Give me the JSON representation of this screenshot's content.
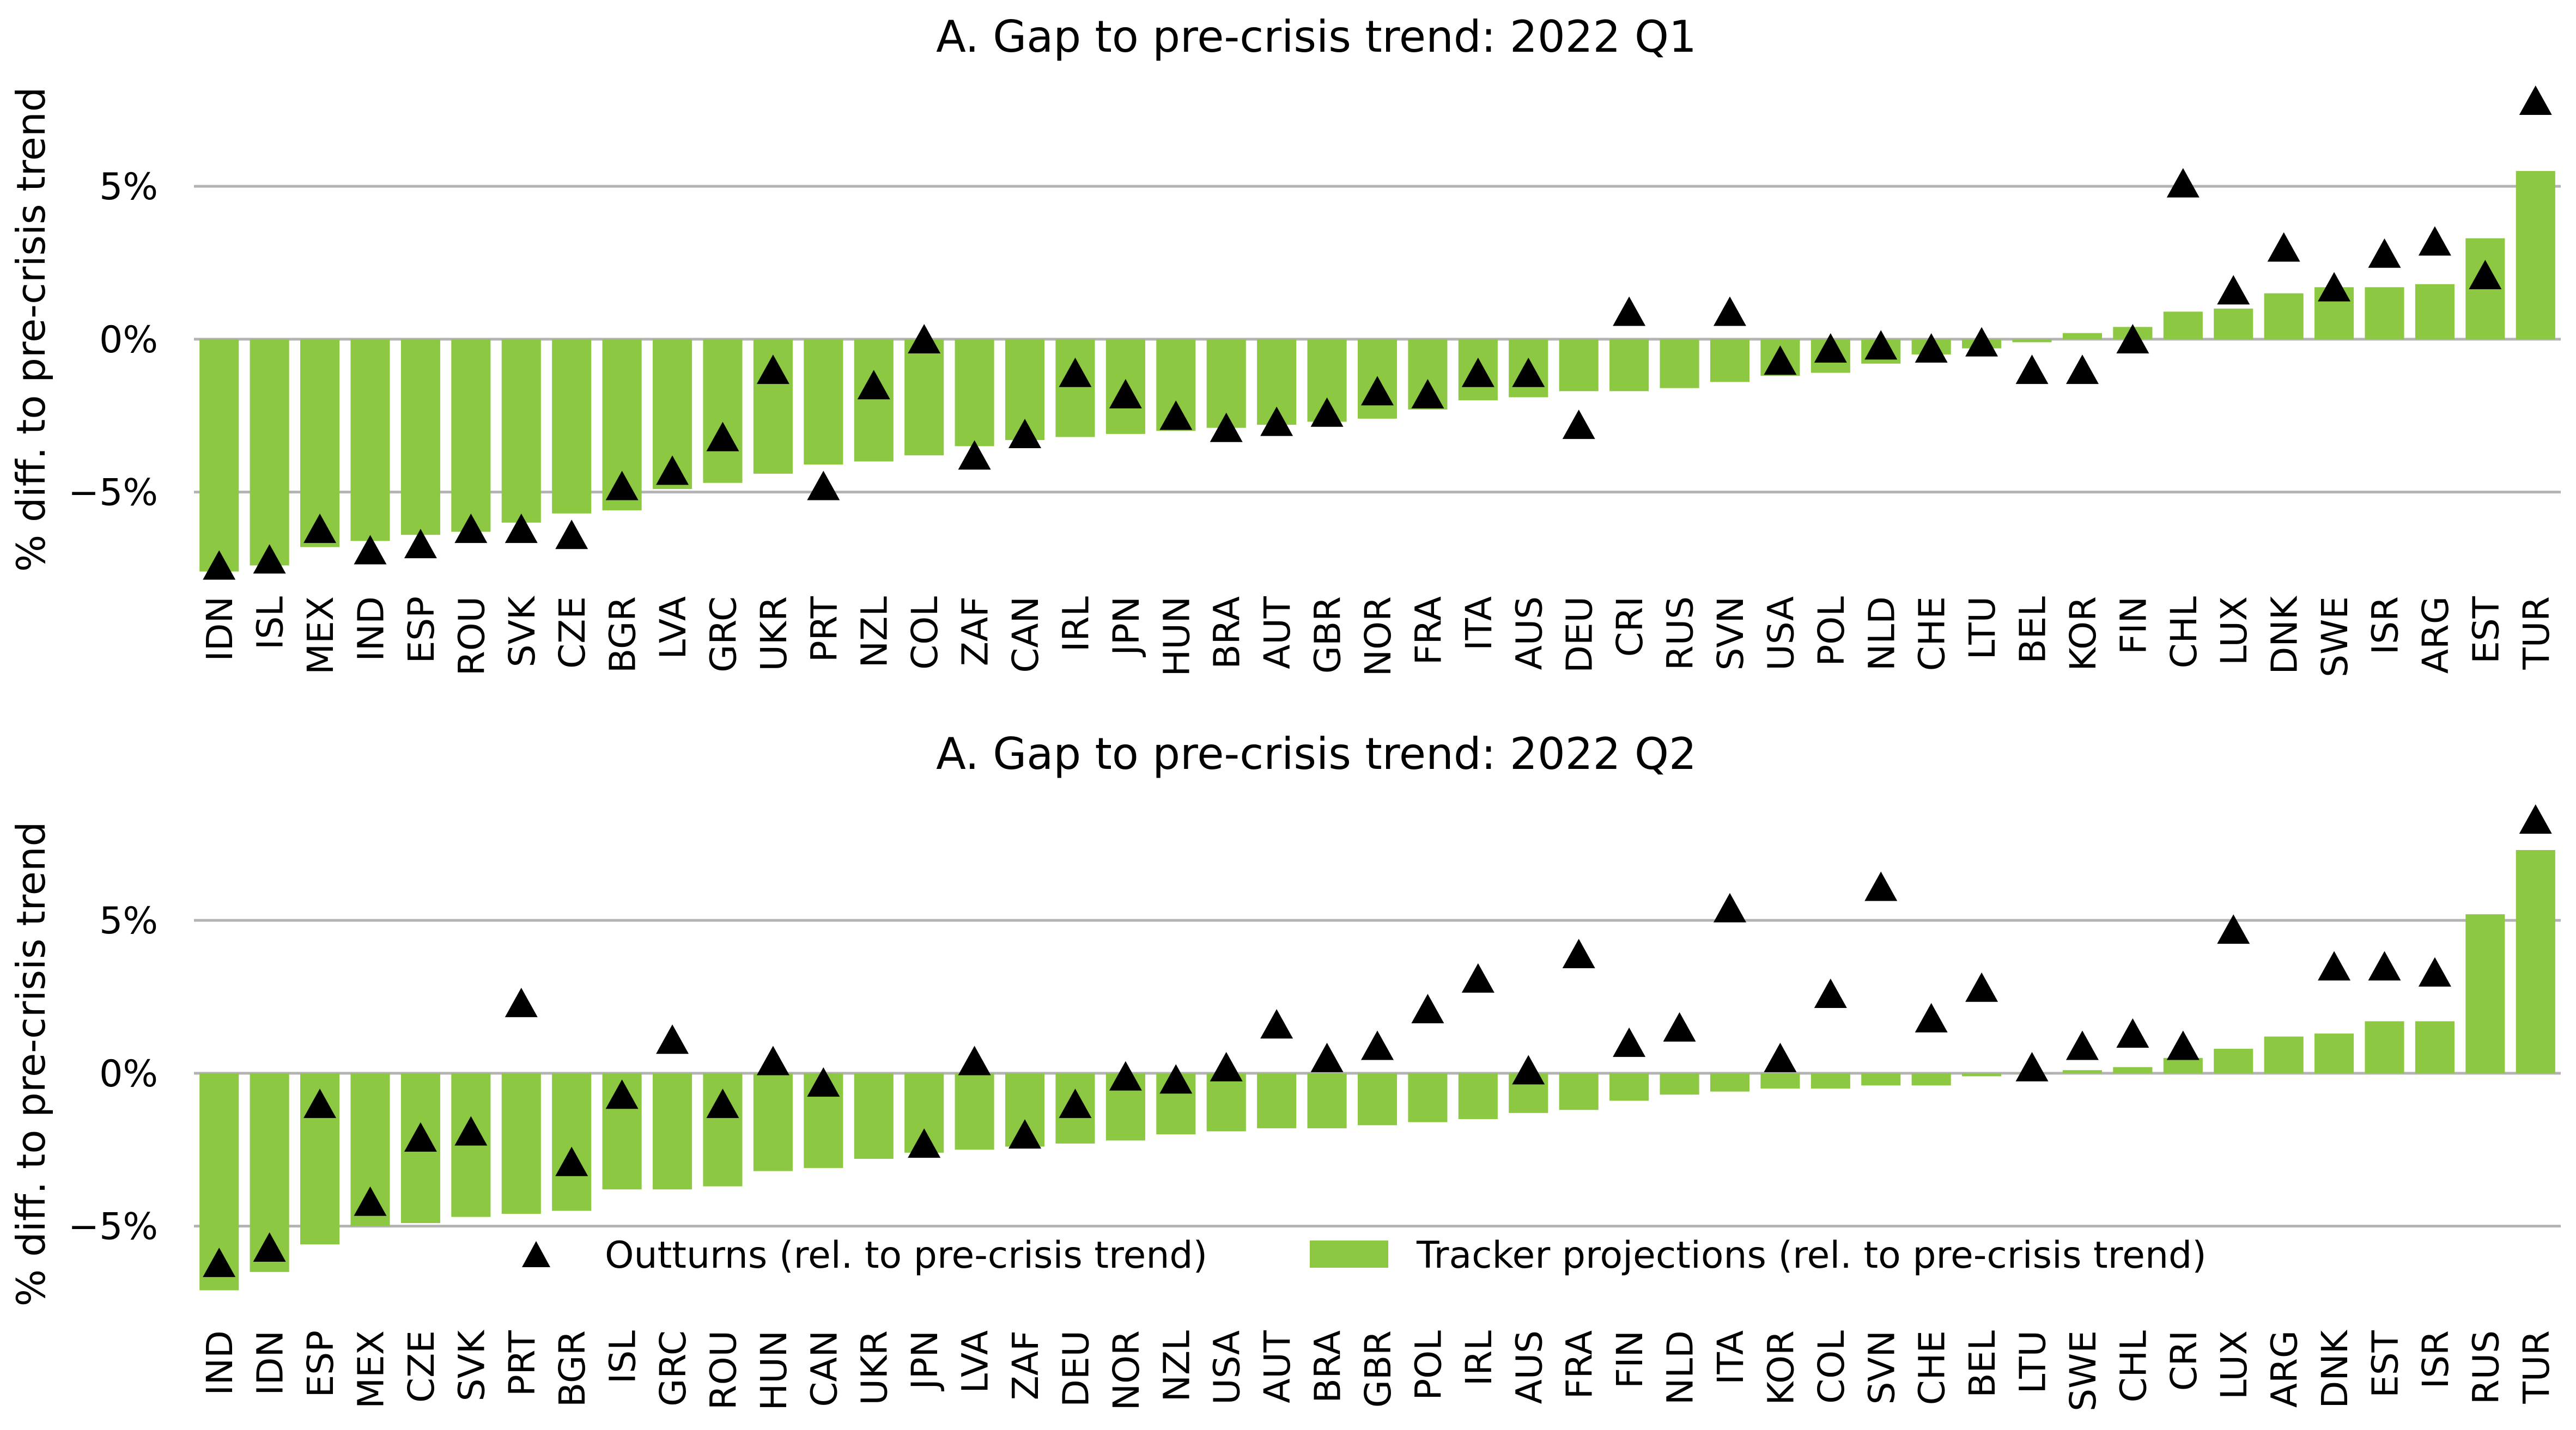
{
  "colors": {
    "bar": "#8cc841",
    "marker": "#000000",
    "grid": "#b3b3b3",
    "text": "#000000"
  },
  "chart_data": [
    {
      "type": "bar",
      "title": "A. Gap to pre-crisis trend: 2022 Q1",
      "xlabel": "",
      "ylabel": "% diff. to pre-crisis trend",
      "ylim": [
        -8.0,
        8.6
      ],
      "yticks": [
        5,
        0,
        -5
      ],
      "ytick_labels": [
        "5%",
        "0%",
        "−5%"
      ],
      "grid": "horizontal",
      "categories": [
        "IDN",
        "ISL",
        "MEX",
        "IND",
        "ESP",
        "ROU",
        "SVK",
        "CZE",
        "BGR",
        "LVA",
        "GRC",
        "UKR",
        "PRT",
        "NZL",
        "COL",
        "ZAF",
        "CAN",
        "IRL",
        "JPN",
        "HUN",
        "BRA",
        "AUT",
        "GBR",
        "NOR",
        "FRA",
        "ITA",
        "AUS",
        "DEU",
        "CRI",
        "RUS",
        "SVN",
        "USA",
        "POL",
        "NLD",
        "CHE",
        "LTU",
        "BEL",
        "KOR",
        "FIN",
        "CHL",
        "LUX",
        "DNK",
        "SWE",
        "ISR",
        "ARG",
        "EST",
        "TUR"
      ],
      "series": [
        {
          "name": "Tracker projections (rel. to pre-crisis trend)",
          "kind": "bar",
          "values": [
            -7.6,
            -7.4,
            -6.8,
            -6.6,
            -6.4,
            -6.3,
            -6.0,
            -5.7,
            -5.6,
            -4.9,
            -4.7,
            -4.4,
            -4.1,
            -4.0,
            -3.8,
            -3.5,
            -3.3,
            -3.2,
            -3.1,
            -3.0,
            -2.9,
            -2.8,
            -2.7,
            -2.6,
            -2.3,
            -2.0,
            -1.9,
            -1.7,
            -1.7,
            -1.6,
            -1.4,
            -1.2,
            -1.1,
            -0.8,
            -0.5,
            -0.3,
            -0.1,
            0.2,
            0.4,
            0.9,
            1.0,
            1.5,
            1.7,
            1.7,
            1.8,
            3.3,
            5.5
          ]
        },
        {
          "name": "Outturns (rel. to pre-crisis trend)",
          "kind": "marker",
          "values": [
            -7.5,
            -7.3,
            -6.3,
            -7.0,
            -6.8,
            -6.3,
            -6.3,
            -6.5,
            -4.9,
            -4.4,
            -3.3,
            -1.1,
            -4.9,
            -1.6,
            -0.1,
            -3.9,
            -3.2,
            -1.2,
            -1.9,
            -2.6,
            -3.0,
            -2.8,
            -2.5,
            -1.8,
            -1.9,
            -1.2,
            -1.2,
            -2.9,
            0.8,
            null,
            0.8,
            -0.8,
            -0.4,
            -0.3,
            -0.4,
            -0.2,
            -1.1,
            -1.1,
            -0.1,
            5.0,
            1.5,
            2.9,
            1.6,
            2.7,
            3.1,
            2.0,
            7.7
          ]
        }
      ]
    },
    {
      "type": "bar",
      "title": "A. Gap to pre-crisis trend: 2022 Q2",
      "xlabel": "",
      "ylabel": "% diff. to pre-crisis trend",
      "ylim": [
        -8.0,
        8.6
      ],
      "yticks": [
        5,
        0,
        -5
      ],
      "ytick_labels": [
        "5%",
        "0%",
        "−5%"
      ],
      "grid": "horizontal",
      "legend": "bottom-center",
      "categories": [
        "IND",
        "IDN",
        "ESP",
        "MEX",
        "CZE",
        "SVK",
        "PRT",
        "BGR",
        "ISL",
        "GRC",
        "ROU",
        "HUN",
        "CAN",
        "UKR",
        "JPN",
        "LVA",
        "ZAF",
        "DEU",
        "NOR",
        "NZL",
        "USA",
        "AUT",
        "BRA",
        "GBR",
        "POL",
        "IRL",
        "AUS",
        "FRA",
        "FIN",
        "NLD",
        "ITA",
        "KOR",
        "COL",
        "SVN",
        "CHE",
        "BEL",
        "LTU",
        "SWE",
        "CHL",
        "CRI",
        "LUX",
        "ARG",
        "DNK",
        "EST",
        "ISR",
        "RUS",
        "TUR"
      ],
      "series": [
        {
          "name": "Tracker projections (rel. to pre-crisis trend)",
          "kind": "bar",
          "values": [
            -7.1,
            -6.5,
            -5.6,
            -5.0,
            -4.9,
            -4.7,
            -4.6,
            -4.5,
            -3.8,
            -3.8,
            -3.7,
            -3.2,
            -3.1,
            -2.8,
            -2.6,
            -2.5,
            -2.4,
            -2.3,
            -2.2,
            -2.0,
            -1.9,
            -1.8,
            -1.8,
            -1.7,
            -1.6,
            -1.5,
            -1.3,
            -1.2,
            -0.9,
            -0.7,
            -0.6,
            -0.5,
            -0.5,
            -0.4,
            -0.4,
            -0.1,
            0.0,
            0.1,
            0.2,
            0.5,
            0.8,
            1.2,
            1.3,
            1.7,
            1.7,
            5.2,
            7.3
          ]
        },
        {
          "name": "Outturns (rel. to pre-crisis trend)",
          "kind": "marker",
          "values": [
            -6.3,
            -5.8,
            -1.1,
            -4.3,
            -2.2,
            -2.0,
            2.2,
            -3.0,
            -0.8,
            1.0,
            -1.1,
            0.3,
            -0.4,
            null,
            -2.4,
            0.3,
            -2.1,
            -1.1,
            -0.2,
            -0.3,
            0.1,
            1.5,
            0.4,
            0.8,
            2.0,
            3.0,
            0.0,
            3.8,
            0.9,
            1.4,
            5.3,
            0.4,
            2.5,
            6.0,
            1.7,
            2.7,
            0.1,
            0.8,
            1.2,
            0.8,
            4.6,
            null,
            3.4,
            3.4,
            3.2,
            null,
            8.2
          ]
        }
      ]
    }
  ],
  "legend": {
    "marker_label": "Outturns (rel. to pre-crisis trend)",
    "bar_label": "Tracker projections (rel. to pre-crisis trend)"
  }
}
